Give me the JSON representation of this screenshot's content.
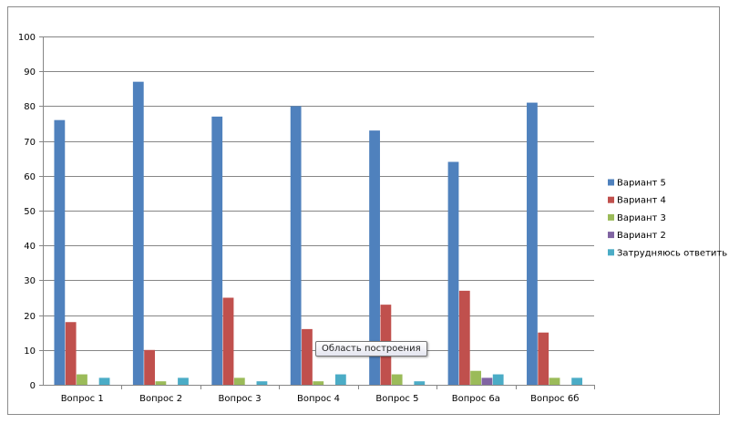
{
  "tooltip": {
    "text": "Область построения"
  },
  "chart_data": {
    "type": "bar",
    "categories": [
      "Вопрос 1",
      "Вопрос 2",
      "Вопрос 3",
      "Вопрос 4",
      "Вопрос 5",
      "Вопрос 6а",
      "Вопрос 6б"
    ],
    "series": [
      {
        "name": "Вариант 5",
        "color": "#4f81bd",
        "values": [
          76,
          87,
          77,
          80,
          73,
          64,
          81
        ]
      },
      {
        "name": "Вариант 4",
        "color": "#c0504d",
        "values": [
          18,
          10,
          25,
          16,
          23,
          27,
          15
        ]
      },
      {
        "name": "Вариант 3",
        "color": "#9bbb59",
        "values": [
          3,
          1,
          2,
          1,
          3,
          4,
          2
        ]
      },
      {
        "name": "Вариант 2",
        "color": "#8064a2",
        "values": [
          0,
          0,
          0,
          0,
          0,
          2,
          0
        ]
      },
      {
        "name": "Затрудняюсь ответить",
        "color": "#4bacc6",
        "values": [
          2,
          2,
          1,
          3,
          1,
          3,
          2
        ]
      }
    ],
    "ylim": [
      0,
      100
    ],
    "yticks": [
      "0",
      "10",
      "20",
      "30",
      "40",
      "50",
      "60",
      "70",
      "80",
      "90",
      "100"
    ],
    "grid": true,
    "legend": "right",
    "title": "",
    "xlabel": "",
    "ylabel": ""
  }
}
